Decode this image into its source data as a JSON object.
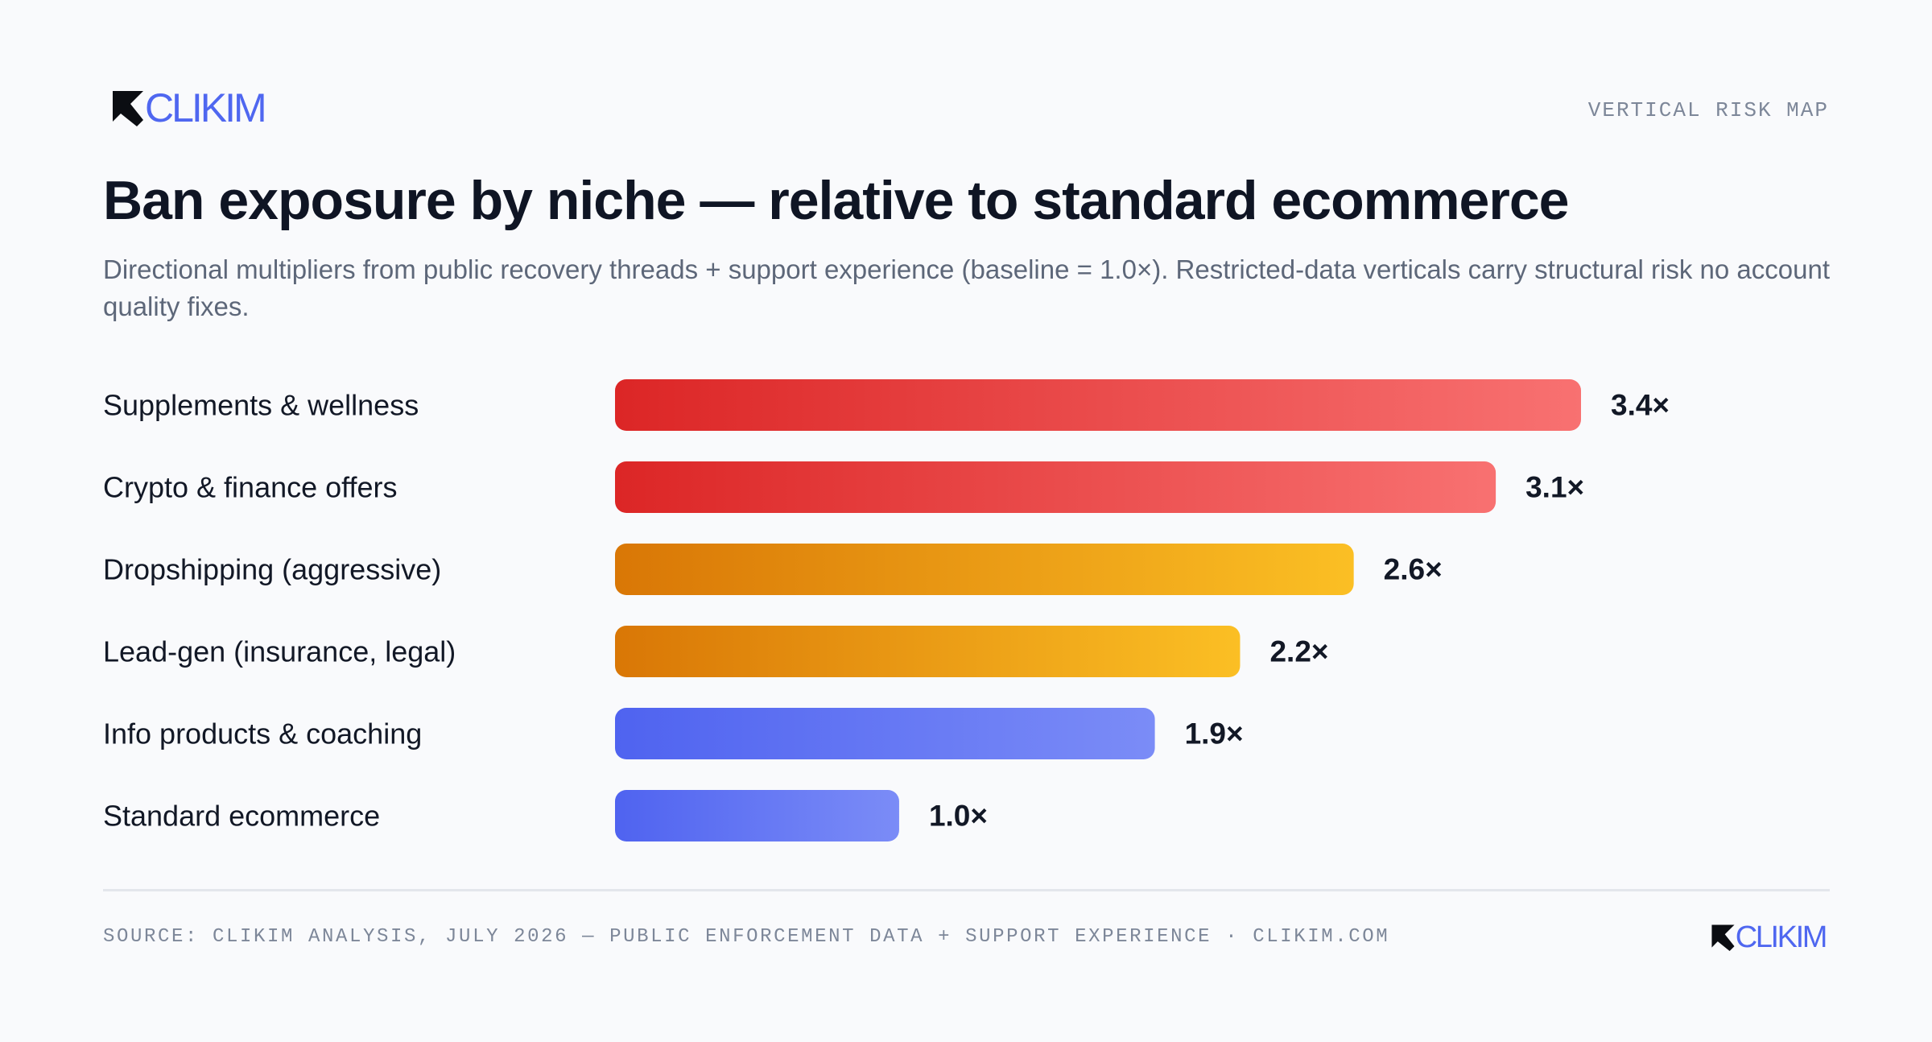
{
  "brand": {
    "name": "CLIKIM",
    "accent_color": "#4f67f0",
    "logo_icon": "arrow-up-left-icon"
  },
  "header": {
    "tag": "VERTICAL RISK MAP"
  },
  "title": "Ban exposure by niche — relative to standard ecommerce",
  "subtitle": "Directional multipliers from public recovery threads + support experience (baseline = 1.0×). Restricted-data verticals carry structural risk no account quality fixes.",
  "chart_data": {
    "type": "bar",
    "orientation": "horizontal",
    "categories": [
      "Supplements & wellness",
      "Crypto & finance offers",
      "Dropshipping (aggressive)",
      "Lead-gen (insurance, legal)",
      "Info products & coaching",
      "Standard ecommerce"
    ],
    "values": [
      3.4,
      3.1,
      2.6,
      2.2,
      1.9,
      1.0
    ],
    "value_labels": [
      "3.4×",
      "3.1×",
      "2.6×",
      "2.2×",
      "1.9×",
      "1.0×"
    ],
    "xlim": [
      0,
      3.4
    ],
    "grid": false,
    "legend": "none",
    "bar_colors": [
      {
        "from": "#dc2626",
        "to": "#f87171"
      },
      {
        "from": "#dc2626",
        "to": "#f87171"
      },
      {
        "from": "#d97706",
        "to": "#fbbf24"
      },
      {
        "from": "#d97706",
        "to": "#fbbf24"
      },
      {
        "from": "#4f63f0",
        "to": "#7b8cf7"
      },
      {
        "from": "#4f63f0",
        "to": "#7b8cf7"
      }
    ]
  },
  "footer": {
    "source": "SOURCE: CLIKIM ANALYSIS, JULY 2026 — PUBLIC ENFORCEMENT DATA + SUPPORT EXPERIENCE · CLIKIM.COM"
  }
}
